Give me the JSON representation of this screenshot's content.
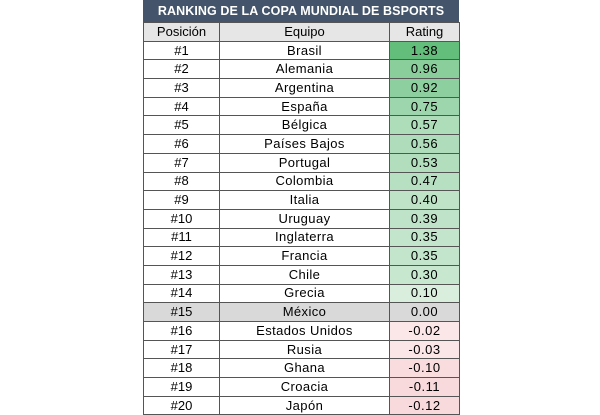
{
  "title": "RANKING DE LA COPA MUNDIAL DE BSPORTS",
  "headers": {
    "position": "Posición",
    "team": "Equipo",
    "rating": "Rating"
  },
  "colors": {
    "header_bg": "#44546a",
    "positive_scale": [
      "#63be7b",
      "#e3f2e6"
    ],
    "zero": "#d9d9d9",
    "negative_scale": [
      "#fbe9ea",
      "#f8d9dc"
    ]
  },
  "rows": [
    {
      "position": "#1",
      "team": "Brasil",
      "rating": "1.38",
      "value": 1.38
    },
    {
      "position": "#2",
      "team": "Alemania",
      "rating": "0.96",
      "value": 0.96
    },
    {
      "position": "#3",
      "team": "Argentina",
      "rating": "0.92",
      "value": 0.92
    },
    {
      "position": "#4",
      "team": "España",
      "rating": "0.75",
      "value": 0.75
    },
    {
      "position": "#5",
      "team": "Bélgica",
      "rating": "0.57",
      "value": 0.57
    },
    {
      "position": "#6",
      "team": "Países Bajos",
      "rating": "0.56",
      "value": 0.56
    },
    {
      "position": "#7",
      "team": "Portugal",
      "rating": "0.53",
      "value": 0.53
    },
    {
      "position": "#8",
      "team": "Colombia",
      "rating": "0.47",
      "value": 0.47
    },
    {
      "position": "#9",
      "team": "Italia",
      "rating": "0.40",
      "value": 0.4
    },
    {
      "position": "#10",
      "team": "Uruguay",
      "rating": "0.39",
      "value": 0.39
    },
    {
      "position": "#11",
      "team": "Inglaterra",
      "rating": "0.35",
      "value": 0.35
    },
    {
      "position": "#12",
      "team": "Francia",
      "rating": "0.35",
      "value": 0.35
    },
    {
      "position": "#13",
      "team": "Chile",
      "rating": "0.30",
      "value": 0.3
    },
    {
      "position": "#14",
      "team": "Grecia",
      "rating": "0.10",
      "value": 0.1
    },
    {
      "position": "#15",
      "team": "México",
      "rating": "0.00",
      "value": 0.0
    },
    {
      "position": "#16",
      "team": "Estados Unidos",
      "rating": "-0.02",
      "value": -0.02
    },
    {
      "position": "#17",
      "team": "Rusia",
      "rating": "-0.03",
      "value": -0.03
    },
    {
      "position": "#18",
      "team": "Ghana",
      "rating": "-0.10",
      "value": -0.1
    },
    {
      "position": "#19",
      "team": "Croacia",
      "rating": "-0.11",
      "value": -0.11
    },
    {
      "position": "#20",
      "team": "Japón",
      "rating": "-0.12",
      "value": -0.12
    }
  ]
}
